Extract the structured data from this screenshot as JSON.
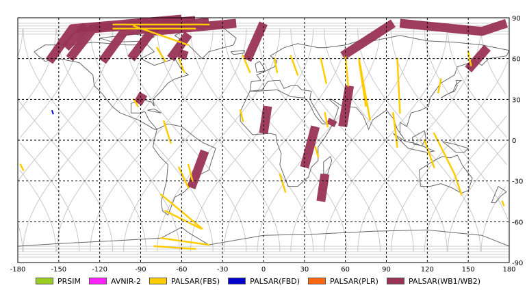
{
  "chart_data": {
    "type": "map",
    "projection": "equirectangular",
    "xlim": [
      -180,
      180
    ],
    "ylim": [
      -90,
      90
    ],
    "grid": true,
    "x_ticks": [
      -180,
      -150,
      -120,
      -90,
      -60,
      -30,
      0,
      30,
      60,
      90,
      120,
      150,
      180
    ],
    "y_ticks": [
      90,
      60,
      30,
      0,
      -30,
      -60,
      -90
    ],
    "legend": [
      {
        "name": "PRSIM",
        "color": "#99cc22"
      },
      {
        "name": "AVNIR-2",
        "color": "#ff22ff"
      },
      {
        "name": "PALSAR(FBS)",
        "color": "#ffcc00"
      },
      {
        "name": "PALSAR(FBD)",
        "color": "#0000cc"
      },
      {
        "name": "PALSAR(PLR)",
        "color": "#ff6611"
      },
      {
        "name": "PALSAR(WB1/WB2)",
        "color": "#993355"
      }
    ],
    "wide_swaths": [
      [
        [
          -157,
          58
        ],
        [
          -140,
          82
        ],
        [
          -60,
          89
        ]
      ],
      [
        [
          -118,
          58
        ],
        [
          -102,
          80
        ],
        [
          -40,
          87
        ]
      ],
      [
        [
          -142,
          60
        ],
        [
          -125,
          82
        ],
        [
          -50,
          88
        ]
      ],
      [
        [
          -97,
          60
        ],
        [
          -82,
          80
        ],
        [
          -20,
          86
        ]
      ],
      [
        [
          -68,
          60
        ],
        [
          -55,
          78
        ]
      ],
      [
        [
          -12,
          59
        ],
        [
          0,
          86
        ]
      ],
      [
        [
          -92,
          27
        ],
        [
          -88,
          34
        ]
      ],
      [
        [
          58,
          62
        ],
        [
          95,
          86
        ]
      ],
      [
        [
          100,
          86
        ],
        [
          160,
          80
        ],
        [
          178,
          86
        ]
      ],
      [
        [
          150,
          52
        ],
        [
          164,
          68
        ]
      ],
      [
        [
          -60,
          60
        ],
        [
          -58,
          66
        ]
      ],
      [
        [
          -53,
          -35
        ],
        [
          -43,
          -8
        ]
      ],
      [
        [
          0,
          5
        ],
        [
          3,
          25
        ]
      ],
      [
        [
          30,
          -20
        ],
        [
          38,
          10
        ]
      ],
      [
        [
          42,
          -45
        ],
        [
          45,
          -25
        ]
      ],
      [
        [
          58,
          10
        ],
        [
          63,
          40
        ]
      ],
      [
        [
          49,
          11
        ],
        [
          51,
          15
        ]
      ],
      [
        [
          -145,
          68
        ],
        [
          -130,
          84
        ]
      ]
    ],
    "fbs_lines": [
      [
        [
          -110,
          85
        ],
        [
          -40,
          85
        ]
      ],
      [
        [
          -110,
          82
        ],
        [
          -50,
          82
        ]
      ],
      [
        [
          -95,
          84
        ],
        [
          -55,
          70
        ]
      ],
      [
        [
          -78,
          68
        ],
        [
          -72,
          58
        ]
      ],
      [
        [
          -62,
          60
        ],
        [
          -58,
          50
        ]
      ],
      [
        [
          -95,
          30
        ],
        [
          -92,
          25
        ]
      ],
      [
        [
          -73,
          14
        ],
        [
          -68,
          -2
        ]
      ],
      [
        [
          -62,
          -20
        ],
        [
          -55,
          -35
        ]
      ],
      [
        [
          -55,
          -18
        ],
        [
          -52,
          -30
        ]
      ],
      [
        [
          -75,
          -40
        ],
        [
          -45,
          -65
        ]
      ],
      [
        [
          -72,
          -52
        ],
        [
          -46,
          -65
        ]
      ],
      [
        [
          -75,
          -72
        ],
        [
          -40,
          -77
        ]
      ],
      [
        [
          -80,
          -78
        ],
        [
          -50,
          -80
        ]
      ],
      [
        [
          -178,
          -18
        ],
        [
          -176,
          -22
        ]
      ],
      [
        [
          -15,
          62
        ],
        [
          -10,
          50
        ]
      ],
      [
        [
          -17,
          22
        ],
        [
          -15,
          14
        ]
      ],
      [
        [
          20,
          62
        ],
        [
          25,
          48
        ]
      ],
      [
        [
          38,
          -5
        ],
        [
          40,
          -12
        ]
      ],
      [
        [
          42,
          60
        ],
        [
          46,
          42
        ]
      ],
      [
        [
          45,
          20
        ],
        [
          47,
          10
        ]
      ],
      [
        [
          8,
          60
        ],
        [
          10,
          50
        ]
      ],
      [
        [
          12,
          -25
        ],
        [
          16,
          -38
        ]
      ],
      [
        [
          70,
          60
        ],
        [
          78,
          15
        ]
      ],
      [
        [
          70,
          58
        ],
        [
          75,
          25
        ]
      ],
      [
        [
          60,
          62
        ],
        [
          62,
          40
        ]
      ],
      [
        [
          98,
          60
        ],
        [
          100,
          20
        ]
      ],
      [
        [
          95,
          20
        ],
        [
          98,
          -5
        ]
      ],
      [
        [
          130,
          45
        ],
        [
          128,
          35
        ]
      ],
      [
        [
          140,
          -25
        ],
        [
          145,
          -40
        ]
      ],
      [
        [
          125,
          5
        ],
        [
          140,
          -25
        ]
      ],
      [
        [
          118,
          0
        ],
        [
          125,
          -20
        ]
      ],
      [
        [
          175,
          -45
        ],
        [
          176,
          -48
        ]
      ],
      [
        [
          150,
          65
        ],
        [
          152,
          55
        ]
      ]
    ],
    "fbd_lines": [
      [
        [
          -155,
          22
        ],
        [
          -154,
          19
        ]
      ]
    ]
  }
}
